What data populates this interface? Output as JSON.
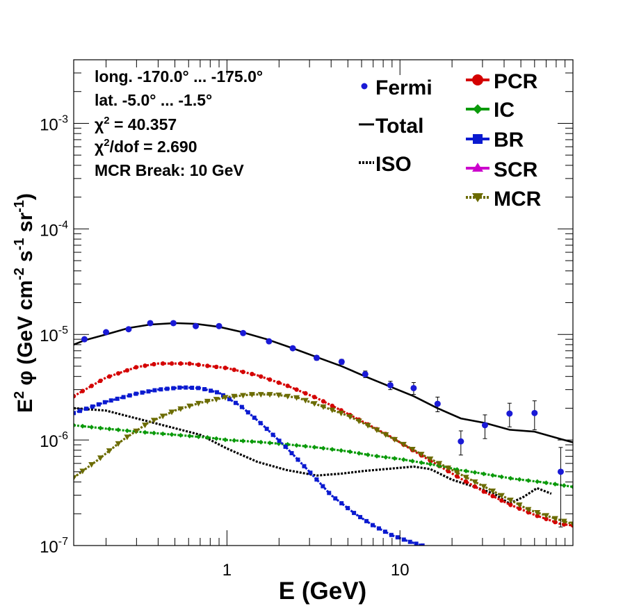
{
  "chart_data": {
    "type": "line",
    "x_scale": "log",
    "y_scale": "log",
    "xlim": [
      0.13,
      100
    ],
    "ylim": [
      1e-07,
      0.004
    ],
    "xlabel": "E (GeV)",
    "ylabel_parts": [
      "E",
      "2",
      "  φ (GeV cm",
      "-2",
      " s",
      "-1",
      " sr",
      "-1",
      ")"
    ],
    "x_ticks": [
      {
        "value": 1,
        "label": "1"
      },
      {
        "value": 10,
        "label": "10"
      }
    ],
    "y_ticks": [
      {
        "value": 1e-07,
        "base": "10",
        "exp": "-7"
      },
      {
        "value": 1e-06,
        "base": "10",
        "exp": "-6"
      },
      {
        "value": 1e-05,
        "base": "10",
        "exp": "-5"
      },
      {
        "value": 0.0001,
        "base": "10",
        "exp": "-4"
      },
      {
        "value": 0.001,
        "base": "10",
        "exp": "-3"
      }
    ],
    "annotations": {
      "longitude": "long. -170.0° ... -175.0°",
      "latitude": "lat. -5.0° ... -1.5°",
      "chi2_symbol": "χ",
      "chi2_sup": "2",
      "chi2_value": " = 40.357",
      "chi2dof_value": "/dof = 2.690",
      "mcr_break": "MCR Break: 10 GeV"
    },
    "legend_placement": "top-right",
    "legend": [
      {
        "key": "fermi",
        "label": "Fermi",
        "marker": "dot",
        "color": "#1a1ad6"
      },
      {
        "key": "total",
        "label": "Total",
        "marker": "line",
        "color": "#000000"
      },
      {
        "key": "iso",
        "label": "ISO",
        "marker": "dotted",
        "color": "#000000"
      },
      {
        "key": "pcr",
        "label": "PCR",
        "marker": "circle",
        "color": "#d40000"
      },
      {
        "key": "ic",
        "label": "IC",
        "marker": "diamond",
        "color": "#0a9a0a"
      },
      {
        "key": "br",
        "label": "BR",
        "marker": "square",
        "color": "#0a1ad0"
      },
      {
        "key": "scr",
        "label": "SCR",
        "marker": "triangle-up",
        "color": "#cc00cc"
      },
      {
        "key": "mcr",
        "label": "MCR",
        "marker": "triangle-down",
        "color": "#6b6b00"
      }
    ],
    "fermi": {
      "color": "#1a1ad6",
      "points": [
        {
          "x": 0.15,
          "y": 9e-06,
          "err": 4e-07
        },
        {
          "x": 0.2,
          "y": 1.05e-05,
          "err": 4e-07
        },
        {
          "x": 0.27,
          "y": 1.12e-05,
          "err": 4e-07
        },
        {
          "x": 0.36,
          "y": 1.28e-05,
          "err": 4e-07
        },
        {
          "x": 0.49,
          "y": 1.28e-05,
          "err": 4e-07
        },
        {
          "x": 0.66,
          "y": 1.2e-05,
          "err": 4e-07
        },
        {
          "x": 0.9,
          "y": 1.2e-05,
          "err": 4e-07
        },
        {
          "x": 1.24,
          "y": 1.03e-05,
          "err": 3e-07
        },
        {
          "x": 1.75,
          "y": 8.6e-06,
          "err": 3e-07
        },
        {
          "x": 2.4,
          "y": 7.4e-06,
          "err": 3e-07
        },
        {
          "x": 3.3,
          "y": 6e-06,
          "err": 3e-07
        },
        {
          "x": 4.6,
          "y": 5.5e-06,
          "err": 3e-07
        },
        {
          "x": 6.3,
          "y": 4.2e-06,
          "err": 3e-07
        },
        {
          "x": 8.8,
          "y": 3.3e-06,
          "err": 3e-07
        },
        {
          "x": 12.0,
          "y": 3.1e-06,
          "err": 4e-07
        },
        {
          "x": 16.5,
          "y": 2.2e-06,
          "err": 3.5e-07
        },
        {
          "x": 22.5,
          "y": 9.7e-07,
          "err": 2.5e-07
        },
        {
          "x": 31.0,
          "y": 1.38e-06,
          "err": 3.5e-07
        },
        {
          "x": 43.0,
          "y": 1.78e-06,
          "err": 4.5e-07
        },
        {
          "x": 60.0,
          "y": 1.8e-06,
          "err": 5.5e-07
        },
        {
          "x": 85.0,
          "y": 5e-07,
          "err": 3.5e-07
        }
      ]
    },
    "series": [
      {
        "key": "total",
        "color": "#000000",
        "style": "solid",
        "marker": "none",
        "x": [
          0.13,
          0.15,
          0.2,
          0.27,
          0.36,
          0.5,
          0.66,
          0.9,
          1.2,
          1.7,
          2.4,
          3.3,
          4.6,
          6.3,
          8.8,
          12,
          16.5,
          22.5,
          31,
          43,
          60,
          85,
          100
        ],
        "y": [
          8e-06,
          8.8e-06,
          1e-05,
          1.15e-05,
          1.24e-05,
          1.28e-05,
          1.26e-05,
          1.18e-05,
          1.06e-05,
          9e-06,
          7.4e-06,
          6.1e-06,
          5e-06,
          4e-06,
          3.2e-06,
          2.6e-06,
          2e-06,
          1.6e-06,
          1.45e-06,
          1.25e-06,
          1.2e-06,
          1.02e-06,
          9.5e-07
        ]
      },
      {
        "key": "iso",
        "color": "#000000",
        "style": "dotted",
        "marker": "none",
        "x": [
          0.13,
          0.2,
          0.3,
          0.45,
          0.7,
          1.0,
          1.5,
          2.2,
          3.3,
          4.6,
          6.3,
          8.8,
          12,
          15,
          20,
          27,
          35,
          43,
          52,
          62,
          75
        ],
        "y": [
          2e-06,
          1.9e-06,
          1.6e-06,
          1.35e-06,
          1.12e-06,
          8.3e-07,
          6.2e-07,
          5.2e-07,
          4.6e-07,
          4.8e-07,
          5.1e-07,
          5.35e-07,
          5.6e-07,
          5.3e-07,
          4.2e-07,
          3.6e-07,
          3.1e-07,
          2.5e-07,
          2.9e-07,
          3.5e-07,
          3.1e-07
        ]
      },
      {
        "key": "pcr",
        "color": "#d40000",
        "style": "dotted",
        "marker": "circle",
        "x": [
          0.13,
          0.2,
          0.3,
          0.4,
          0.6,
          0.8,
          1.0,
          1.5,
          2.2,
          3.3,
          4.6,
          6.3,
          8.8,
          12,
          16.5,
          22.5,
          31,
          43,
          60,
          85,
          100
        ],
        "y": [
          2.6e-06,
          3.9e-06,
          4.9e-06,
          5.3e-06,
          5.3e-06,
          5e-06,
          4.8e-06,
          4.1e-06,
          3.3e-06,
          2.5e-06,
          1.9e-06,
          1.45e-06,
          1.08e-06,
          7.9e-07,
          5.8e-07,
          4.3e-07,
          3.2e-07,
          2.45e-07,
          1.95e-07,
          1.6e-07,
          1.55e-07
        ]
      },
      {
        "key": "ic",
        "color": "#0a9a0a",
        "style": "dotted",
        "marker": "diamond",
        "x": [
          0.13,
          0.2,
          0.3,
          0.5,
          0.8,
          1.0,
          1.5,
          2.2,
          3.3,
          5,
          7,
          10,
          15,
          22,
          30,
          45,
          65,
          100
        ],
        "y": [
          1.38e-06,
          1.28e-06,
          1.2e-06,
          1.12e-06,
          1.05e-06,
          1e-06,
          9.6e-07,
          9.1e-07,
          8.5e-07,
          7.8e-07,
          7.1e-07,
          6.6e-07,
          5.9e-07,
          5.2e-07,
          4.8e-07,
          4.3e-07,
          4e-07,
          3.6e-07
        ]
      },
      {
        "key": "br",
        "color": "#0a1ad0",
        "style": "dotted",
        "marker": "square",
        "x": [
          0.13,
          0.2,
          0.3,
          0.4,
          0.55,
          0.7,
          0.9,
          1.2,
          1.6,
          2.2,
          3.0,
          4.0,
          5.5,
          7.0,
          9.0,
          11.5,
          13.5
        ],
        "y": [
          1.8e-06,
          2.3e-06,
          2.75e-06,
          3e-06,
          3.15e-06,
          3.1e-06,
          2.8e-06,
          2.1e-06,
          1.4e-06,
          8.5e-07,
          5e-07,
          3e-07,
          2e-07,
          1.55e-07,
          1.25e-07,
          1.08e-07,
          1e-07
        ]
      },
      {
        "key": "mcr",
        "color": "#6b6b00",
        "style": "dotted",
        "marker": "triangle-down",
        "x": [
          0.13,
          0.18,
          0.25,
          0.35,
          0.5,
          0.7,
          1.0,
          1.4,
          1.9,
          2.6,
          3.5,
          5,
          7,
          10,
          14,
          20,
          28,
          40,
          55,
          75,
          100
        ],
        "y": [
          4.4e-07,
          6.5e-07,
          1e-06,
          1.45e-06,
          1.9e-06,
          2.25e-06,
          2.55e-06,
          2.7e-06,
          2.7e-06,
          2.5e-06,
          2.1e-06,
          1.7e-06,
          1.3e-06,
          9.5e-07,
          7e-07,
          5.2e-07,
          3.9e-07,
          2.9e-07,
          2.2e-07,
          1.85e-07,
          1.6e-07
        ]
      }
    ]
  }
}
